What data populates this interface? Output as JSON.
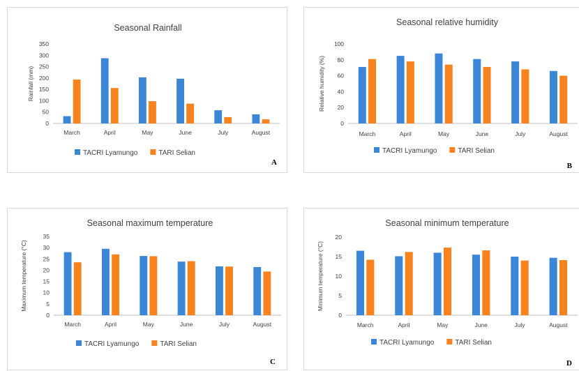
{
  "colors": {
    "tacri": "#3b86d6",
    "tari": "#f7821e",
    "axis": "#bfbfbf",
    "text": "#404040"
  },
  "chart_data": [
    {
      "id": "A",
      "type": "bar",
      "title": "Seasonal Rainfall",
      "xlabel": "",
      "ylabel": "Rainfall (mm)",
      "ylim": [
        0,
        350
      ],
      "ytick_step": 50,
      "yticks": [
        "0",
        "50",
        "100",
        "150",
        "200",
        "250",
        "300",
        "350"
      ],
      "grid": false,
      "legend_position": "bottom",
      "categories": [
        "March",
        "April",
        "May",
        "June",
        "July",
        "August"
      ],
      "series": [
        {
          "name": "TACRI Lyamungo",
          "color": "#3b86d6",
          "values": [
            32,
            287,
            203,
            197,
            58,
            40
          ]
        },
        {
          "name": "TARI Selian",
          "color": "#f7821e",
          "values": [
            193,
            156,
            98,
            87,
            28,
            18
          ]
        }
      ],
      "panel_label": "A"
    },
    {
      "id": "B",
      "type": "bar",
      "title": "Seasonal relative humidity",
      "xlabel": "",
      "ylabel": "Relative humidity (%)",
      "ylim": [
        0,
        100
      ],
      "ytick_step": 20,
      "yticks": [
        "0",
        "20",
        "40",
        "60",
        "80",
        "100"
      ],
      "grid": false,
      "legend_position": "bottom",
      "categories": [
        "March",
        "April",
        "May",
        "June",
        "July",
        "August"
      ],
      "series": [
        {
          "name": "TACRI Lyamungo",
          "color": "#3b86d6",
          "values": [
            71,
            85,
            88,
            81,
            78,
            66
          ]
        },
        {
          "name": "TARI Selian",
          "color": "#f7821e",
          "values": [
            81,
            78,
            74,
            71,
            68,
            60
          ]
        }
      ],
      "panel_label": "B"
    },
    {
      "id": "C",
      "type": "bar",
      "title": "Seasonal maximum temperature",
      "xlabel": "",
      "ylabel": "Maximum temperature (°C)",
      "ylim": [
        0,
        35
      ],
      "ytick_step": 5,
      "yticks": [
        "0",
        "5",
        "10",
        "15",
        "20",
        "25",
        "30",
        "35"
      ],
      "grid": false,
      "legend_position": "bottom",
      "categories": [
        "March",
        "April",
        "May",
        "June",
        "July",
        "August"
      ],
      "series": [
        {
          "name": "TACRI Lyamungo",
          "color": "#3b86d6",
          "values": [
            28,
            29.5,
            26.3,
            23.8,
            21.7,
            21.4
          ]
        },
        {
          "name": "TARI Selian",
          "color": "#f7821e",
          "values": [
            23.5,
            27,
            26.2,
            24,
            21.6,
            19.4
          ]
        }
      ],
      "panel_label": "C"
    },
    {
      "id": "D",
      "type": "bar",
      "title": "Seasonal minimum temperature",
      "xlabel": "",
      "ylabel": "Minimum temperature (°C)",
      "ylim": [
        0,
        20
      ],
      "ytick_step": 5,
      "yticks": [
        "0",
        "5",
        "10",
        "15",
        "20"
      ],
      "grid": false,
      "legend_position": "bottom",
      "categories": [
        "March",
        "April",
        "May",
        "June",
        "July",
        "August"
      ],
      "series": [
        {
          "name": "TACRI Lyamungo",
          "color": "#3b86d6",
          "values": [
            16.5,
            15.1,
            16,
            15.5,
            15,
            14.7
          ]
        },
        {
          "name": "TARI Selian",
          "color": "#f7821e",
          "values": [
            14.2,
            16.2,
            17.3,
            16.6,
            14,
            14.1
          ]
        }
      ],
      "panel_label": "D"
    }
  ]
}
